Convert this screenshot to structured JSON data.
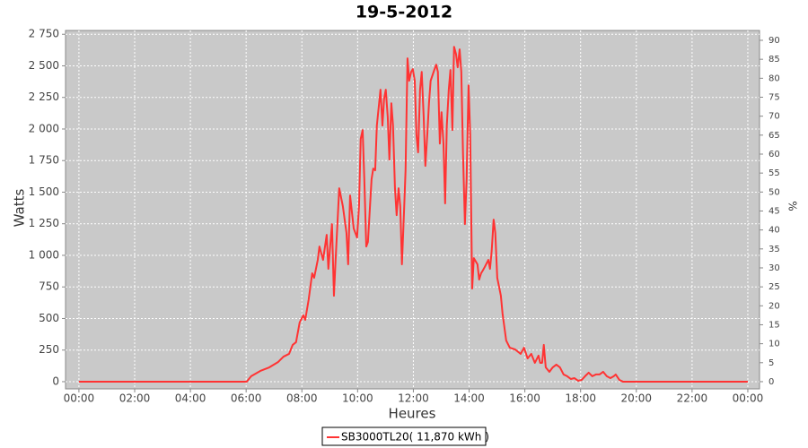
{
  "chart_data": {
    "type": "line",
    "title": "19-5-2012",
    "x_label": "Heures",
    "y_label": "Watts",
    "y2_label": "%",
    "x": [
      0,
      6.02,
      6.18,
      6.51,
      6.83,
      7.15,
      7.34,
      7.54,
      7.67,
      7.79,
      7.92,
      8.05,
      8.12,
      8.24,
      8.37,
      8.44,
      8.57,
      8.63,
      8.76,
      8.89,
      8.95,
      9.08,
      9.15,
      9.21,
      9.34,
      9.47,
      9.6,
      9.66,
      9.73,
      9.86,
      9.98,
      10.05,
      10.11,
      10.18,
      10.24,
      10.31,
      10.37,
      10.5,
      10.56,
      10.63,
      10.69,
      10.82,
      10.89,
      10.95,
      11.01,
      11.08,
      11.14,
      11.21,
      11.27,
      11.34,
      11.4,
      11.47,
      11.53,
      11.59,
      11.66,
      11.72,
      11.79,
      11.85,
      11.92,
      11.98,
      12.05,
      12.11,
      12.17,
      12.24,
      12.3,
      12.37,
      12.43,
      12.5,
      12.56,
      12.62,
      12.75,
      12.82,
      12.88,
      12.95,
      13.01,
      13.08,
      13.14,
      13.2,
      13.27,
      13.33,
      13.4,
      13.46,
      13.53,
      13.59,
      13.66,
      13.72,
      13.78,
      13.85,
      13.91,
      13.98,
      14.04,
      14.11,
      14.17,
      14.3,
      14.36,
      14.43,
      14.49,
      14.56,
      14.69,
      14.75,
      14.81,
      14.88,
      14.94,
      15.01,
      15.14,
      15.2,
      15.33,
      15.46,
      15.65,
      15.85,
      15.97,
      16.1,
      16.23,
      16.36,
      16.49,
      16.55,
      16.62,
      16.68,
      16.75,
      16.88,
      17.0,
      17.13,
      17.26,
      17.39,
      17.52,
      17.65,
      17.78,
      17.91,
      18.04,
      18.16,
      18.29,
      18.42,
      18.55,
      18.68,
      18.81,
      18.94,
      19.07,
      19.19,
      19.26,
      19.39,
      19.52,
      24
    ],
    "series": [
      {
        "name": "SB3000TL20( 11,870 kWh )",
        "color": "#ff3333",
        "values": [
          0,
          0,
          43,
          85,
          113,
          156,
          198,
          220,
          291,
          312,
          468,
          525,
          489,
          645,
          858,
          822,
          964,
          1070,
          964,
          1162,
          893,
          1247,
          680,
          964,
          1531,
          1389,
          1177,
          929,
          1474,
          1212,
          1141,
          1389,
          1921,
          1992,
          1602,
          1070,
          1106,
          1602,
          1687,
          1673,
          2027,
          2311,
          2027,
          2240,
          2311,
          2098,
          1758,
          2204,
          2027,
          1531,
          1318,
          1531,
          1389,
          929,
          1318,
          1673,
          2559,
          2382,
          2452,
          2474,
          2382,
          1956,
          1815,
          2311,
          2452,
          2098,
          1708,
          1956,
          2204,
          2382,
          2467,
          2509,
          2452,
          1885,
          2133,
          1885,
          1411,
          2027,
          2311,
          2467,
          1992,
          2651,
          2594,
          2488,
          2630,
          2452,
          1815,
          1247,
          1602,
          2346,
          1956,
          737,
          978,
          929,
          808,
          858,
          879,
          907,
          964,
          893,
          1035,
          1283,
          1177,
          822,
          680,
          539,
          326,
          269,
          255,
          220,
          269,
          184,
          220,
          149,
          206,
          149,
          149,
          291,
          113,
          78,
          113,
          135,
          113,
          57,
          43,
          21,
          28,
          7,
          14,
          43,
          71,
          43,
          57,
          57,
          78,
          43,
          28,
          43,
          57,
          14,
          0,
          0
        ]
      }
    ],
    "xlim": [
      -0.48,
      24.42
    ],
    "xticks": [
      {
        "value": 0,
        "label": "00:00"
      },
      {
        "value": 2,
        "label": "02:00"
      },
      {
        "value": 4,
        "label": "04:00"
      },
      {
        "value": 6,
        "label": "06:00"
      },
      {
        "value": 8,
        "label": "08:00"
      },
      {
        "value": 10,
        "label": "10:00"
      },
      {
        "value": 12,
        "label": "12:00"
      },
      {
        "value": 14,
        "label": "14:00"
      },
      {
        "value": 16,
        "label": "16:00"
      },
      {
        "value": 18,
        "label": "18:00"
      },
      {
        "value": 20,
        "label": "20:00"
      },
      {
        "value": 22,
        "label": "22:00"
      },
      {
        "value": 24,
        "label": "00:00"
      }
    ],
    "ylim": [
      -57,
      2780
    ],
    "yticks": [
      0,
      250,
      500,
      750,
      {
        "value": 1000,
        "label": "1 000"
      },
      {
        "value": 1250,
        "label": "1 250"
      },
      {
        "value": 1500,
        "label": "1 500"
      },
      {
        "value": 1750,
        "label": "1 750"
      },
      {
        "value": 2000,
        "label": "2 000"
      },
      {
        "value": 2250,
        "label": "2 250"
      },
      {
        "value": 2500,
        "label": "2 500"
      },
      {
        "value": 2750,
        "label": "2 750"
      }
    ],
    "y2lim": [
      -1.9,
      92.6
    ],
    "y2ticks": [
      0,
      5,
      10,
      15,
      20,
      25,
      30,
      35,
      40,
      45,
      50,
      55,
      60,
      65,
      70,
      75,
      80,
      85,
      90
    ],
    "grid": true
  }
}
